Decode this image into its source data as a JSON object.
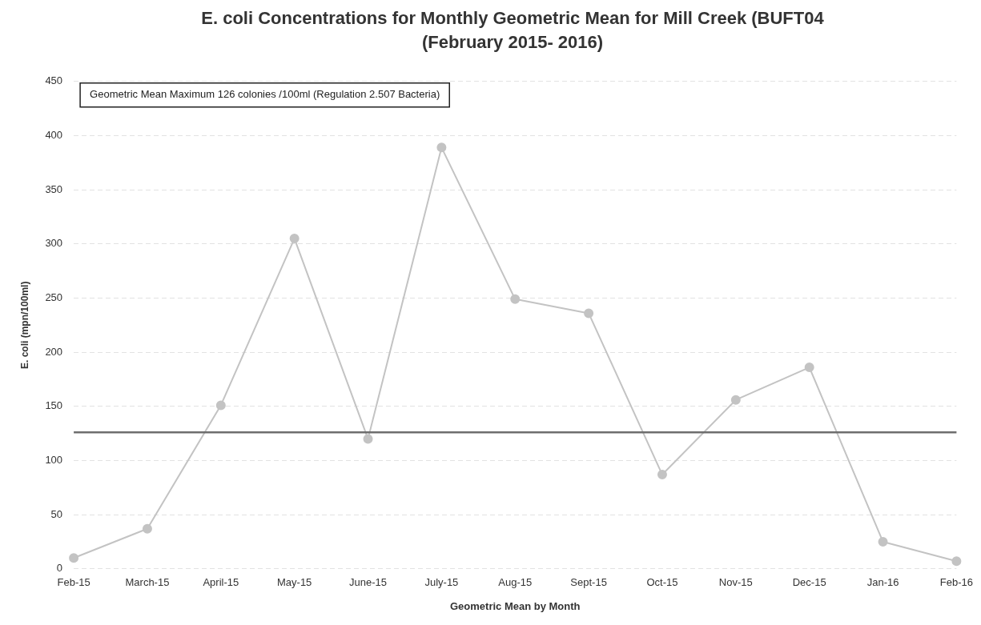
{
  "chart_data": {
    "type": "line",
    "title": "E. coli Concentrations for Monthly Geometric Mean for Mill Creek (BUFT04 (February 2015- 2016)",
    "xlabel": "Geometric Mean by Month",
    "ylabel": "E. coli (mpn/100ml)",
    "categories": [
      "Feb-15",
      "March-15",
      "April-15",
      "May-15",
      "June-15",
      "July-15",
      "Aug-15",
      "Sept-15",
      "Oct-15",
      "Nov-15",
      "Dec-15",
      "Jan-16",
      "Feb-16"
    ],
    "series": [
      {
        "color": "#c3c3c3",
        "values": [
          10,
          37,
          151,
          305,
          120,
          389,
          249,
          236,
          87,
          156,
          186,
          25,
          7
        ]
      }
    ],
    "ylim": [
      0,
      450
    ],
    "yticks": [
      0,
      50,
      100,
      150,
      200,
      250,
      300,
      350,
      400,
      450
    ],
    "grid": "y",
    "legend": false,
    "marker": "circle",
    "line_style": "solid",
    "annotations": [
      "Geometric Mean Maximum 126 colonies /100ml (Regulation 2.507 Bacteria)"
    ],
    "ref_lines": [
      {
        "axis": "y",
        "value": 126,
        "color": "#6e6e6e"
      }
    ]
  }
}
